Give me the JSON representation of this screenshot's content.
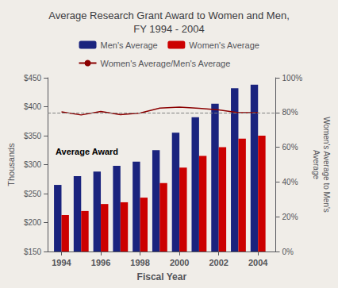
{
  "chart_data": {
    "type": "bar",
    "title": "Average Research Grant Award to Women and Men,\nFY 1994 - 2004",
    "xlabel": "Fiscal Year",
    "ylabel": "Thousands",
    "y2label": "Women's Average to Men's\nAverage",
    "x": [
      1994,
      1995,
      1996,
      1997,
      1998,
      1999,
      2000,
      2001,
      2002,
      2003,
      2004
    ],
    "series": [
      {
        "name": "Men's Average",
        "type": "bar",
        "color": "#1a237e",
        "values": [
          265,
          280,
          288,
          298,
          305,
          325,
          355,
          382,
          405,
          432,
          438
        ]
      },
      {
        "name": "Women's Average",
        "type": "bar",
        "color": "#cc0000",
        "values": [
          213,
          220,
          232,
          235,
          243,
          268,
          295,
          315,
          330,
          345,
          350
        ]
      },
      {
        "name": "Women's Average/Men's Average",
        "type": "line",
        "axis": "y2",
        "color": "#8b0000",
        "values": [
          0.804,
          0.786,
          0.806,
          0.788,
          0.797,
          0.825,
          0.831,
          0.824,
          0.815,
          0.799,
          0.799
        ]
      }
    ],
    "hlines": [
      {
        "value": 0.8,
        "axis": "y2",
        "line_style": "dashed",
        "color": "gray"
      }
    ],
    "annotations": [
      {
        "text": "Average Award"
      }
    ],
    "xlim": [
      1993.3,
      2004.9
    ],
    "xticks": [
      1994,
      1996,
      1998,
      2000,
      2002,
      2004
    ],
    "ylim": [
      150,
      450
    ],
    "yticks": [
      {
        "value": 150,
        "label": "$150"
      },
      {
        "value": 200,
        "label": "$200"
      },
      {
        "value": 250,
        "label": "$250"
      },
      {
        "value": 300,
        "label": "$300"
      },
      {
        "value": 350,
        "label": "$350"
      },
      {
        "value": 400,
        "label": "$400"
      },
      {
        "value": 450,
        "label": "$450"
      }
    ],
    "y2lim": [
      0,
      1.0
    ],
    "y2ticks": [
      {
        "value": 0.0,
        "label": "0%"
      },
      {
        "value": 0.2,
        "label": "20%"
      },
      {
        "value": 0.4,
        "label": "40%"
      },
      {
        "value": 0.6,
        "label": "60%"
      },
      {
        "value": 0.8,
        "label": "80%"
      },
      {
        "value": 1.0,
        "label": "100%"
      }
    ],
    "grid": false,
    "legend": "top"
  }
}
